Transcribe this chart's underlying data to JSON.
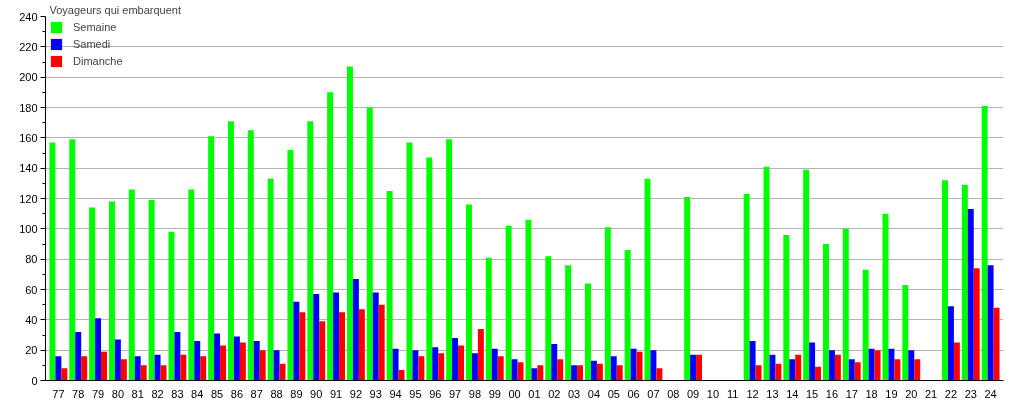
{
  "chart_data": {
    "type": "bar",
    "title": "Voyageurs qui embarquent",
    "categories": [
      "77",
      "78",
      "79",
      "80",
      "81",
      "82",
      "83",
      "84",
      "85",
      "86",
      "87",
      "88",
      "89",
      "90",
      "91",
      "92",
      "93",
      "94",
      "95",
      "96",
      "97",
      "98",
      "99",
      "00",
      "01",
      "02",
      "03",
      "04",
      "05",
      "06",
      "07",
      "08",
      "09",
      "10",
      "11",
      "12",
      "13",
      "14",
      "15",
      "16",
      "17",
      "18",
      "19",
      "20",
      "21",
      "22",
      "23",
      "24"
    ],
    "series": [
      {
        "name": "Semaine",
        "color": "#00ff00",
        "values": [
          157,
          159,
          114,
          118,
          126,
          119,
          98,
          126,
          161,
          171,
          165,
          133,
          152,
          171,
          190,
          207,
          180,
          125,
          157,
          147,
          159,
          116,
          81,
          102,
          106,
          82,
          76,
          64,
          101,
          86,
          133,
          null,
          121,
          null,
          null,
          123,
          141,
          96,
          139,
          90,
          100,
          73,
          110,
          63,
          null,
          132,
          129,
          181
        ]
      },
      {
        "name": "Samedi",
        "color": "#0000ff",
        "values": [
          16,
          32,
          41,
          27,
          16,
          17,
          32,
          26,
          31,
          29,
          26,
          20,
          52,
          57,
          58,
          67,
          58,
          21,
          20,
          22,
          28,
          18,
          21,
          14,
          8,
          24,
          10,
          13,
          16,
          21,
          20,
          null,
          17,
          null,
          null,
          26,
          17,
          14,
          25,
          20,
          14,
          21,
          21,
          20,
          null,
          49,
          113,
          76
        ]
      },
      {
        "name": "Dimanche",
        "color": "#ff0000",
        "values": [
          8,
          16,
          19,
          14,
          10,
          10,
          17,
          16,
          23,
          25,
          20,
          11,
          45,
          39,
          45,
          47,
          50,
          7,
          16,
          18,
          23,
          34,
          16,
          12,
          10,
          14,
          10,
          11,
          10,
          19,
          8,
          null,
          17,
          null,
          null,
          10,
          11,
          17,
          9,
          17,
          12,
          20,
          14,
          14,
          null,
          25,
          74,
          48
        ]
      }
    ],
    "ylim": [
      0,
      240
    ],
    "yticks": [
      0,
      {
        "value": 10,
        "label": null
      },
      20,
      {
        "value": 30,
        "label": null
      },
      40,
      {
        "value": 50,
        "label": null
      },
      60,
      {
        "value": 70,
        "label": null
      },
      80,
      {
        "value": 90,
        "label": null
      },
      100,
      {
        "value": 110,
        "label": null
      },
      120,
      {
        "value": 130,
        "label": null
      },
      140,
      {
        "value": 150,
        "label": null
      },
      160,
      {
        "value": 170,
        "label": null
      },
      180,
      {
        "value": 190,
        "label": null
      },
      200,
      {
        "value": 210,
        "label": null
      },
      220,
      {
        "value": 230,
        "label": null
      },
      240
    ],
    "grid": "y",
    "legend": "top left"
  }
}
